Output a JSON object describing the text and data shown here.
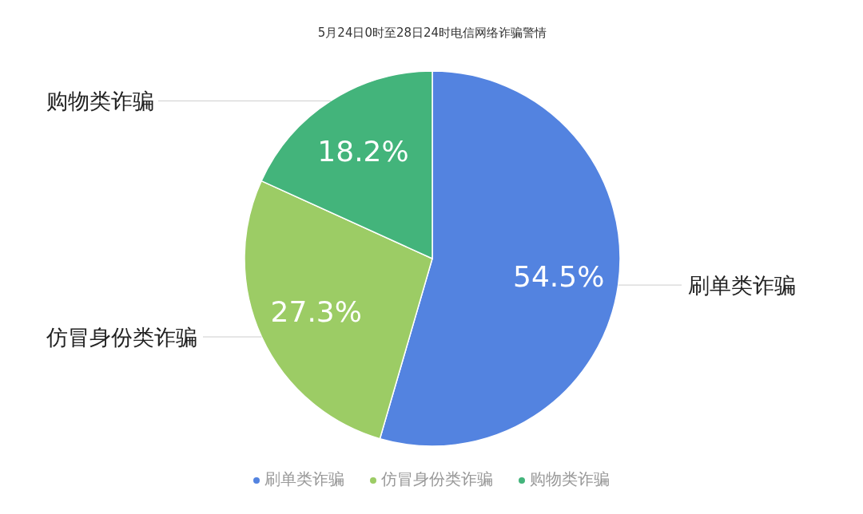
{
  "chart_data": {
    "type": "pie",
    "title": "5月24日0时至28日24时电信网络诈骗警情",
    "categories": [
      "刷单类诈骗",
      "仿冒身份类诈骗",
      "购物类诈骗"
    ],
    "values": [
      54.5,
      27.3,
      18.2
    ],
    "colors": [
      "#5383e0",
      "#9ccc65",
      "#43b47b"
    ],
    "value_labels": [
      "54.5%",
      "27.3%",
      "18.2%"
    ],
    "legend": "bottom"
  }
}
